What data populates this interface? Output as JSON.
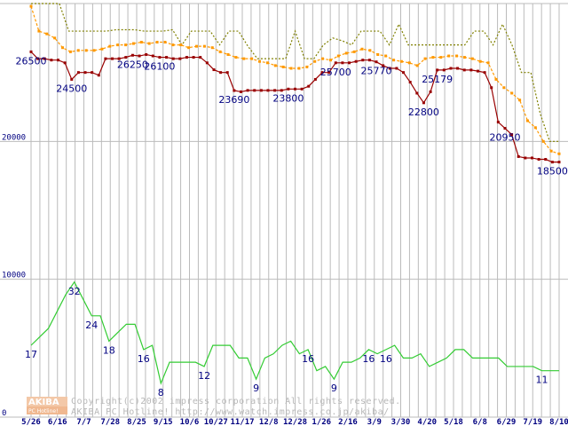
{
  "chart_data": {
    "type": "line",
    "title": "",
    "xlabel": "",
    "ylabel": "",
    "ylim": [
      0,
      30000
    ],
    "yticks": [
      0,
      10000,
      20000
    ],
    "ytick_labels": [
      "0",
      "10000",
      "20000"
    ],
    "x_tick_labels": [
      "5/26",
      "6/16",
      "7/7",
      "7/28",
      "8/25",
      "9/15",
      "10/6",
      "10/27",
      "11/17",
      "12/8",
      "12/28",
      "1/26",
      "2/16",
      "3/9",
      "3/30",
      "4/20",
      "5/18",
      "6/8",
      "6/29",
      "7/19",
      "8/10"
    ],
    "colors": {
      "high": "#808000",
      "average": "#ff9900",
      "low": "#990000",
      "shops": "#33cc33",
      "grid": "#bbbbbb",
      "labels": "#000080"
    },
    "series": [
      {
        "name": "high",
        "style": "dotted",
        "values": [
          30000,
          30000,
          30000,
          30000,
          28000,
          28000,
          28000,
          28000,
          28000,
          28100,
          28100,
          28100,
          28000,
          28000,
          28000,
          28100,
          27000,
          28000,
          28000,
          28000,
          27000,
          28000,
          28000,
          26900,
          26000,
          26000,
          26000,
          26000,
          28000,
          26000,
          26000,
          27000,
          27500,
          27300,
          27000,
          28000,
          28000,
          28000,
          27000,
          28500,
          27000,
          27000,
          27000,
          27000,
          27000,
          27000,
          27000,
          28000,
          28000,
          27000,
          28500,
          27000,
          25000,
          25000,
          22000,
          20000,
          20000
        ]
      },
      {
        "name": "average",
        "style": "square-dotted",
        "values": [
          29800,
          28000,
          27800,
          27500,
          26800,
          26500,
          26600,
          26600,
          26600,
          26700,
          26900,
          27000,
          27000,
          27100,
          27200,
          27100,
          27200,
          27200,
          27000,
          27000,
          26800,
          26900,
          26900,
          26800,
          26500,
          26300,
          26100,
          26000,
          26000,
          25800,
          25700,
          25500,
          25400,
          25300,
          25300,
          25400,
          25800,
          26000,
          25900,
          26200,
          26400,
          26500,
          26700,
          26600,
          26300,
          26200,
          25900,
          25800,
          25700,
          25500,
          26000,
          26100,
          26100,
          26200,
          26200,
          26100,
          26000,
          25800,
          25700,
          24500,
          23900,
          23500,
          23000,
          21500,
          21000,
          20000,
          19300,
          19100
        ]
      },
      {
        "name": "low",
        "style": "solid-markers",
        "values": [
          26500,
          26000,
          26000,
          25900,
          25900,
          25700,
          24500,
          25000,
          25000,
          25000,
          24800,
          26000,
          26000,
          26000,
          26100,
          26250,
          26200,
          26300,
          26200,
          26100,
          26100,
          26000,
          26000,
          26100,
          26100,
          26100,
          25700,
          25200,
          25000,
          25000,
          23690,
          23600,
          23700,
          23700,
          23700,
          23700,
          23700,
          23700,
          23800,
          23800,
          23800,
          24000,
          24500,
          25000,
          25000,
          25700,
          25700,
          25700,
          25800,
          25900,
          25900,
          25770,
          25500,
          25300,
          25300,
          25000,
          24300,
          23500,
          22800,
          23600,
          25179,
          25179,
          25300,
          25300,
          25179,
          25179,
          25100,
          25000,
          23900,
          21400,
          20950,
          20500,
          18900,
          18800,
          18800,
          18700,
          18700,
          18500,
          18500
        ]
      },
      {
        "name": "shops",
        "style": "solid",
        "values": [
          17,
          19,
          21,
          25,
          29,
          32,
          28,
          24,
          24,
          18,
          20,
          22,
          22,
          16,
          17,
          8,
          13,
          13,
          13,
          13,
          12,
          17,
          17,
          17,
          14,
          14,
          9,
          14,
          15,
          17,
          18,
          15,
          16,
          11,
          12,
          9,
          13,
          13,
          14,
          16,
          15,
          16,
          17,
          14,
          14,
          15,
          12,
          13,
          14,
          16,
          16,
          14,
          14,
          14,
          14,
          12,
          12,
          12,
          12,
          11,
          11,
          11
        ]
      }
    ],
    "data_labels": [
      {
        "series": "low",
        "text": "26500"
      },
      {
        "series": "low",
        "text": "24500"
      },
      {
        "series": "low",
        "text": "26250"
      },
      {
        "series": "low",
        "text": "26100"
      },
      {
        "series": "low",
        "text": "23690"
      },
      {
        "series": "low",
        "text": "23800"
      },
      {
        "series": "low",
        "text": "25700"
      },
      {
        "series": "low",
        "text": "25770"
      },
      {
        "series": "low",
        "text": "22800"
      },
      {
        "series": "low",
        "text": "25179"
      },
      {
        "series": "low",
        "text": "20950"
      },
      {
        "series": "low",
        "text": "18500"
      },
      {
        "series": "shops",
        "text": "17"
      },
      {
        "series": "shops",
        "text": "32"
      },
      {
        "series": "shops",
        "text": "24"
      },
      {
        "series": "shops",
        "text": "18"
      },
      {
        "series": "shops",
        "text": "16"
      },
      {
        "series": "shops",
        "text": "8"
      },
      {
        "series": "shops",
        "text": "12"
      },
      {
        "series": "shops",
        "text": "9"
      },
      {
        "series": "shops",
        "text": "16"
      },
      {
        "series": "shops",
        "text": "9"
      },
      {
        "series": "shops",
        "text": "16"
      },
      {
        "series": "shops",
        "text": "16"
      },
      {
        "series": "shops",
        "text": "11"
      }
    ]
  },
  "watermark": {
    "copyright": "Copyright(c)2002 impress corporation All rights reserved.",
    "site": "AKIBA PC Hotline!  http://www.watch.impress.co.jp/akiba/",
    "logo_top": "AKIBA",
    "logo_bottom": "PC Hotline!"
  }
}
